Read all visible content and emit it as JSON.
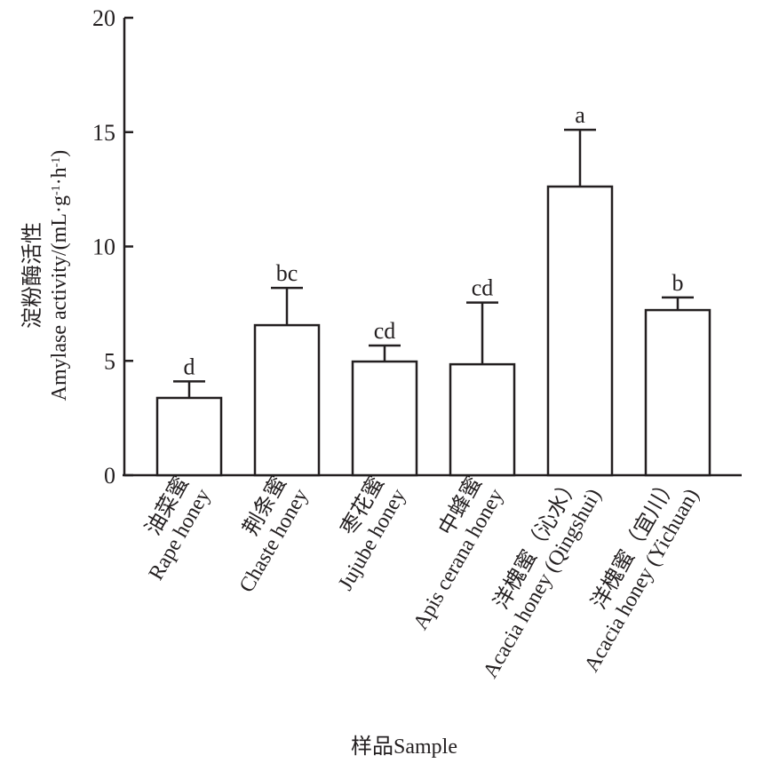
{
  "chart_data": {
    "type": "bar",
    "title": "",
    "xlabel": "样品Sample",
    "ylabel": "淀粉酶活性",
    "ylabel2": "Amylase activity/(mL·g",
    "ylabel_sup1": "-1",
    "ylabel_mid": "·h",
    "ylabel_sup2": "-1",
    "ylabel_end": ")",
    "ylim": [
      0,
      20
    ],
    "yticks": [
      "0",
      "5",
      "10",
      "15",
      "20"
    ],
    "categories": [
      {
        "cn": "油菜蜜",
        "en": "Rape honey"
      },
      {
        "cn": "荆条蜜",
        "en": "Chaste honey"
      },
      {
        "cn": "枣花蜜",
        "en": "Jujube honey"
      },
      {
        "cn": "中蜂蜜",
        "en": "Apis cerana honey"
      },
      {
        "cn": "洋槐蜜（沁水）",
        "en": "Acacia honey (Qingshui)"
      },
      {
        "cn": "洋槐蜜（宜川）",
        "en": "Acacia honey (Yichuan)"
      }
    ],
    "values": [
      3.38,
      6.56,
      4.97,
      4.85,
      12.62,
      7.22
    ],
    "errors": [
      0.72,
      1.63,
      0.7,
      2.7,
      2.48,
      0.55
    ],
    "significance": [
      "d",
      "bc",
      "cd",
      "cd",
      "a",
      "b"
    ],
    "grid": false
  }
}
